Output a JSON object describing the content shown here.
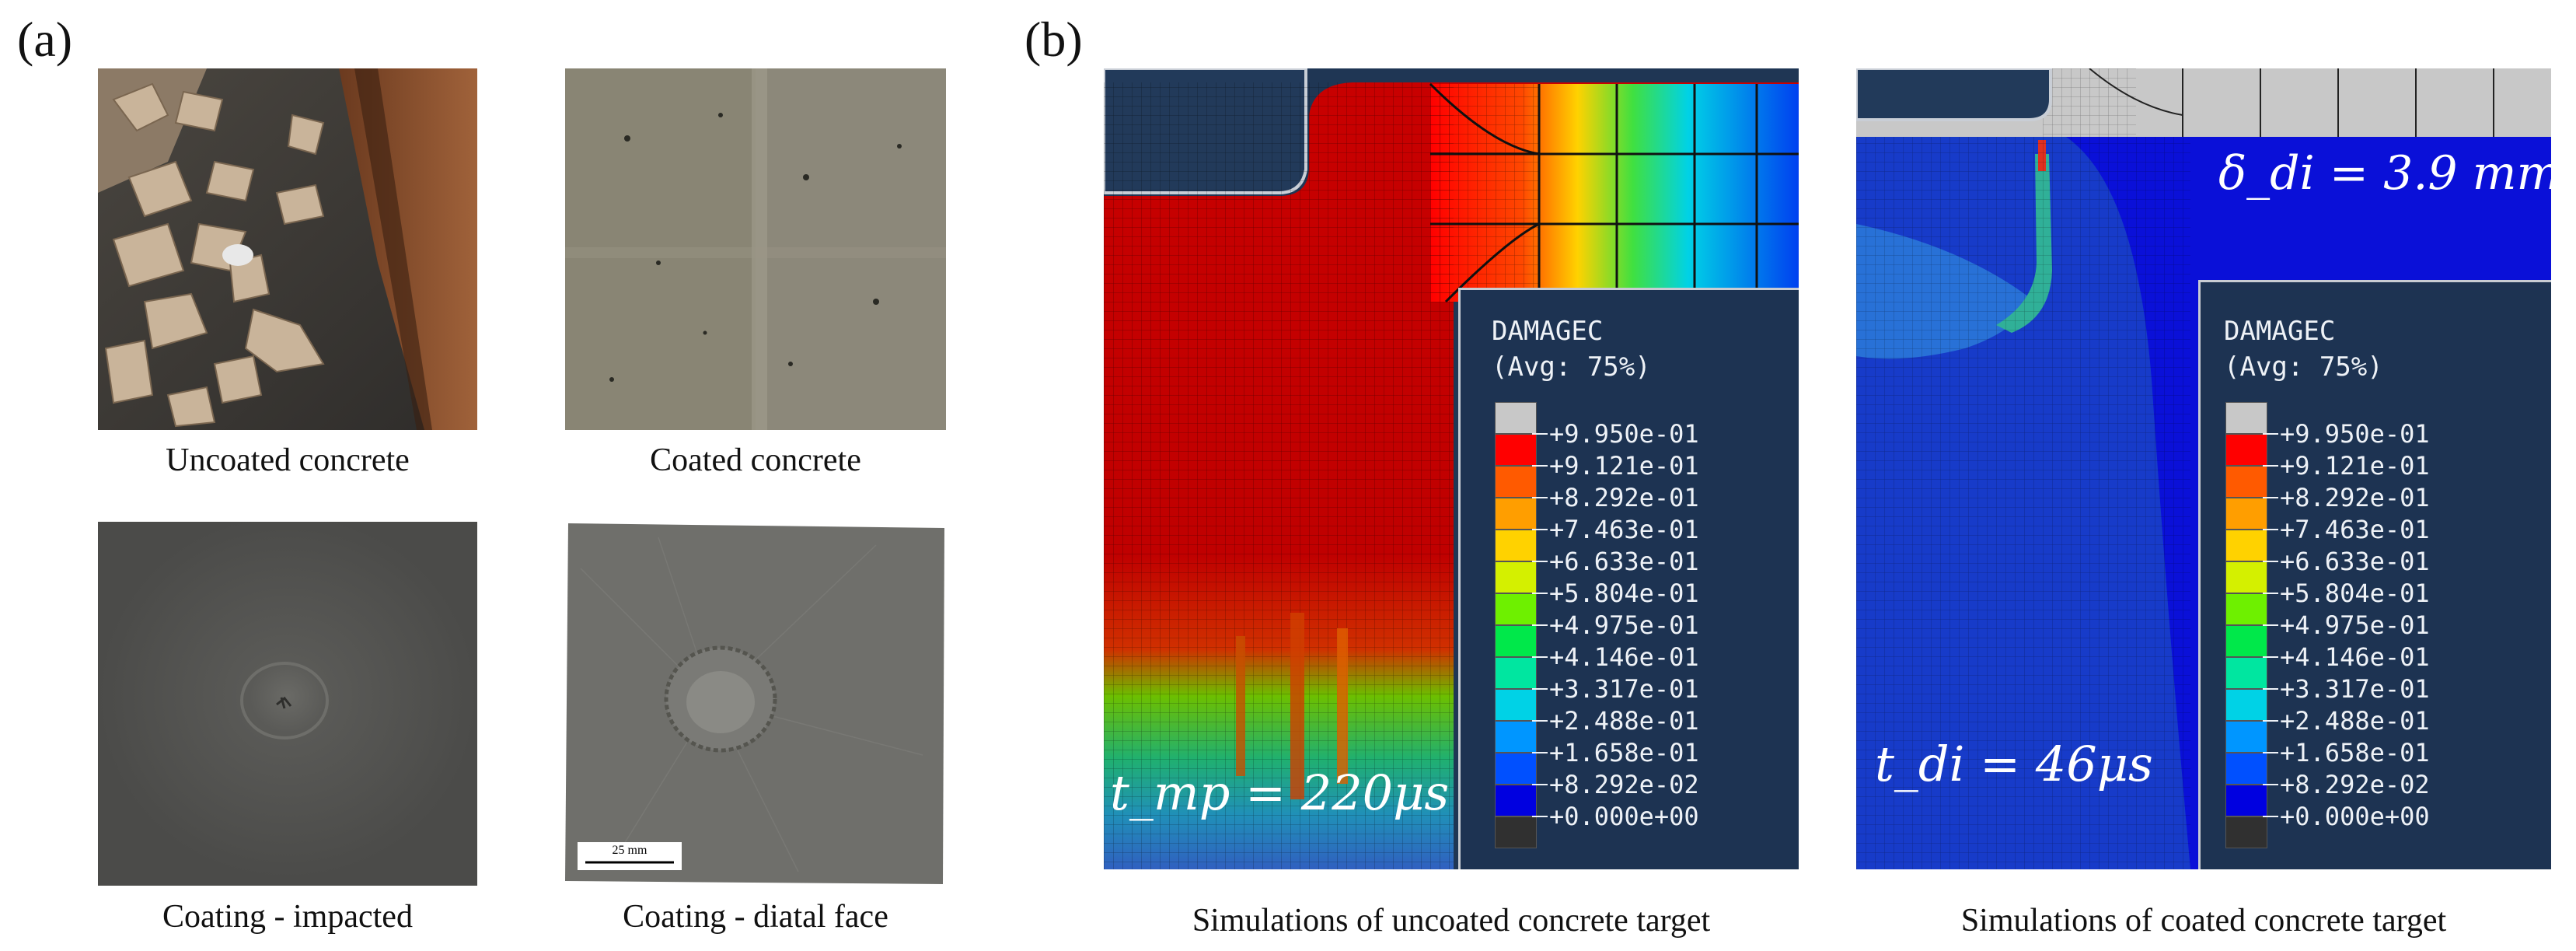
{
  "panel_a": {
    "label": "(a)",
    "photos": [
      {
        "caption": "Uncoated concrete"
      },
      {
        "caption": "Coated concrete"
      },
      {
        "caption": "Coating - impacted"
      },
      {
        "caption": "Coating - diatal face",
        "scale_bar": "25 mm"
      }
    ]
  },
  "panel_b": {
    "label": "(b)",
    "sims": [
      {
        "caption": "Simulations of uncoated concrete target",
        "time_label": "t_mp = 220μs"
      },
      {
        "caption": "Simulations of coated concrete target",
        "time_label": "t_di = 46μs",
        "displacement_label": "δ_di = 3.9 mm"
      }
    ],
    "legend": {
      "title_line1": "DAMAGEC",
      "title_line2": "(Avg: 75%)",
      "ticks": [
        "+9.950e-01",
        "+9.121e-01",
        "+8.292e-01",
        "+7.463e-01",
        "+6.633e-01",
        "+5.804e-01",
        "+4.975e-01",
        "+4.146e-01",
        "+3.317e-01",
        "+2.488e-01",
        "+1.658e-01",
        "+8.292e-02",
        "+0.000e+00"
      ],
      "colors": [
        "#c8c8c8",
        "#ff0000",
        "#ff5a00",
        "#ff9e00",
        "#ffd200",
        "#d4f000",
        "#6ef000",
        "#00e84a",
        "#00e6a0",
        "#00d2e6",
        "#0096ff",
        "#0050ff",
        "#0000e0",
        "#303030"
      ]
    }
  }
}
